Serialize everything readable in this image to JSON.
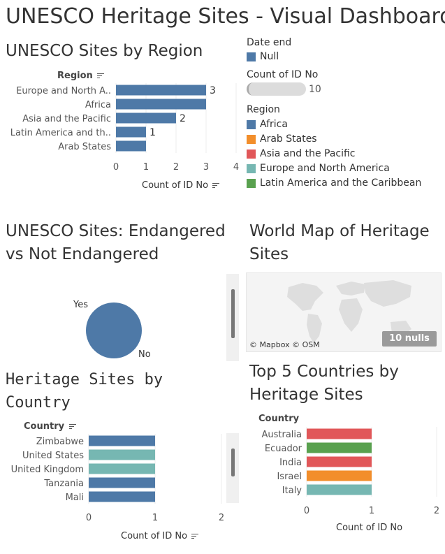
{
  "dashboard_title": "UNESCO Heritage Sites - Visual Dashboard",
  "region_chart": {
    "title": "UNESCO Sites by Region",
    "row_header": "Region",
    "axis_title": "Count of ID No",
    "chart_data": {
      "type": "bar",
      "orientation": "horizontal",
      "categories": [
        "Europe and North A..",
        "Africa",
        "Asia and the Pacific",
        "Latin America and th..",
        "Arab States"
      ],
      "values": [
        3,
        3,
        2,
        1,
        1
      ],
      "data_labels": [
        "3",
        "",
        "2",
        "1",
        ""
      ],
      "colors": [
        "#4e79a7",
        "#4e79a7",
        "#4e79a7",
        "#4e79a7",
        "#4e79a7"
      ],
      "x_ticks": [
        "0",
        "1",
        "2",
        "3",
        "4"
      ],
      "xlim": [
        0,
        4
      ]
    }
  },
  "legends": {
    "date_end": {
      "title": "Date end",
      "items": [
        {
          "label": "Null",
          "color": "#4e79a7"
        }
      ]
    },
    "count": {
      "title": "Count of ID No",
      "value": "10"
    },
    "region": {
      "title": "Region",
      "items": [
        {
          "label": "Africa",
          "color": "#4e79a7"
        },
        {
          "label": "Arab States",
          "color": "#f28e2b"
        },
        {
          "label": "Asia and the Pacific",
          "color": "#e15759"
        },
        {
          "label": "Europe and North America",
          "color": "#76b7b2"
        },
        {
          "label": "Latin America and the Caribbean",
          "color": "#59a14f"
        }
      ]
    }
  },
  "endangered_chart": {
    "title_line1": "UNESCO Sites: Endangered",
    "title_line2": "vs Not Endangered",
    "chart_data": {
      "type": "pie",
      "categories": [
        "Yes",
        "No"
      ],
      "values": [
        0,
        10
      ],
      "colors": [
        "#4e79a7",
        "#4e79a7"
      ]
    }
  },
  "map": {
    "title_line1": "World Map of Heritage",
    "title_line2": "Sites",
    "attribution": "© Mapbox © OSM",
    "nulls_badge": "10 nulls"
  },
  "country_chart": {
    "title_line1": "Heritage Sites by",
    "title_line2": "Country",
    "row_header": "Country",
    "axis_title": "Count of ID No",
    "chart_data": {
      "type": "bar",
      "orientation": "horizontal",
      "categories": [
        "Zimbabwe",
        "United States",
        "United Kingdom",
        "Tanzania",
        "Mali"
      ],
      "values": [
        1,
        1,
        1,
        1,
        1
      ],
      "colors": [
        "#4e79a7",
        "#76b7b2",
        "#76b7b2",
        "#4e79a7",
        "#4e79a7"
      ],
      "x_ticks": [
        "0",
        "1",
        "2"
      ],
      "xlim": [
        0,
        2
      ]
    }
  },
  "top5_chart": {
    "title_line1": "Top 5 Countries by",
    "title_line2": "Heritage Sites",
    "row_header": "Country",
    "axis_title": "Count of ID No",
    "chart_data": {
      "type": "bar",
      "orientation": "horizontal",
      "categories": [
        "Australia",
        "Ecuador",
        "India",
        "Israel",
        "Italy"
      ],
      "values": [
        1,
        1,
        1,
        1,
        1
      ],
      "colors": [
        "#e15759",
        "#59a14f",
        "#e15759",
        "#f28e2b",
        "#76b7b2"
      ],
      "x_ticks": [
        "0",
        "1",
        "2"
      ],
      "xlim": [
        0,
        2
      ]
    }
  }
}
